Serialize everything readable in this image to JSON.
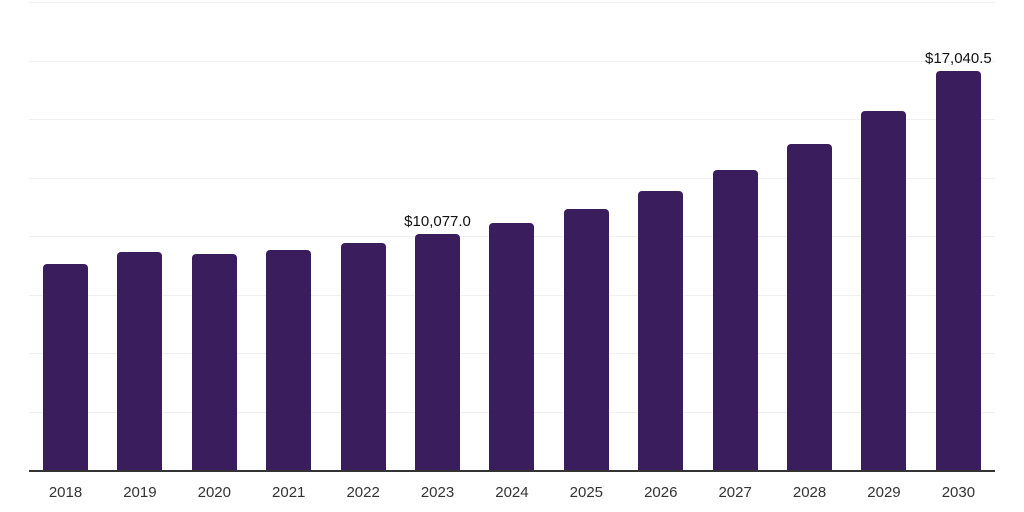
{
  "chart_data": {
    "type": "bar",
    "title": "",
    "categories": [
      "2018",
      "2019",
      "2020",
      "2021",
      "2022",
      "2023",
      "2024",
      "2025",
      "2026",
      "2027",
      "2028",
      "2029",
      "2030"
    ],
    "values": [
      8820,
      9320,
      9250,
      9400,
      9690,
      10077.0,
      10560,
      11150,
      11940,
      12840,
      13920,
      15340,
      17040.5
    ],
    "annotations": [
      {
        "category": "2023",
        "text": "$10,077.0"
      },
      {
        "category": "2030",
        "text": "$17,040.5"
      }
    ],
    "xlabel": "",
    "ylabel": "",
    "ylim": [
      0,
      20000
    ],
    "gridline_interval": 2500,
    "grid": "horizontal",
    "y_axis_labels_visible": false,
    "legend": "none",
    "colors": {
      "bar": "#3A1D5C",
      "axis_line": "#333333",
      "gridline": "#f0f0f0",
      "value_label": "#111111",
      "tick_label": "#333333",
      "background": "#ffffff"
    }
  }
}
